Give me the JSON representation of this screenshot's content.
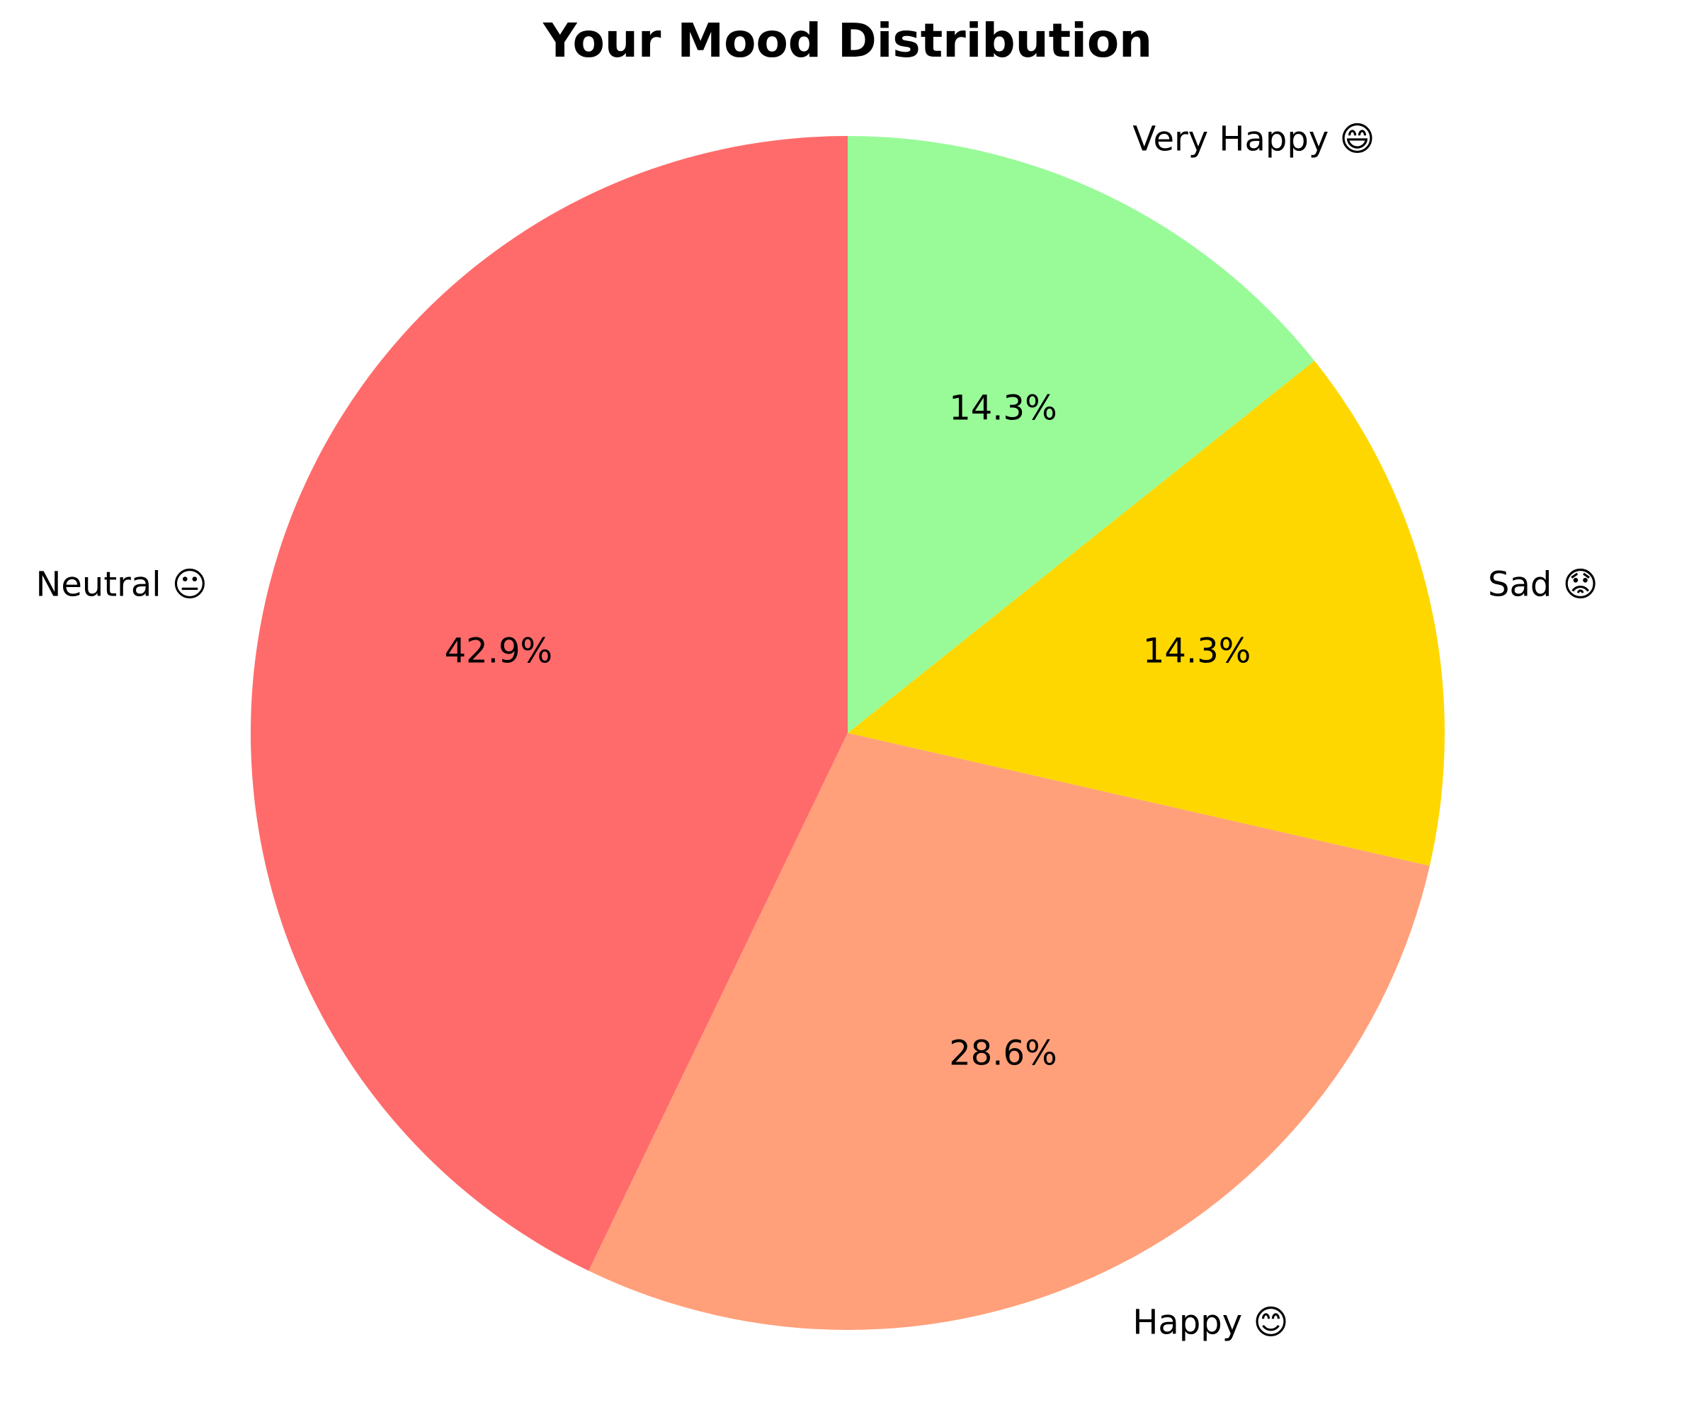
{
  "chart_data": {
    "type": "pie",
    "title": "Your Mood Distribution",
    "start_angle_deg": 90,
    "direction": "counterclockwise",
    "slices": [
      {
        "label": "Neutral 😐",
        "value": 42.9,
        "pct_label": "42.9%",
        "color": "#FF6B6B"
      },
      {
        "label": "Happy 😊",
        "value": 28.6,
        "pct_label": "28.6%",
        "color": "#FFA07A"
      },
      {
        "label": "Sad 😟",
        "value": 14.3,
        "pct_label": "14.3%",
        "color": "#FFD700"
      },
      {
        "label": "Very Happy 😄",
        "value": 14.3,
        "pct_label": "14.3%",
        "color": "#98FB98"
      }
    ]
  }
}
